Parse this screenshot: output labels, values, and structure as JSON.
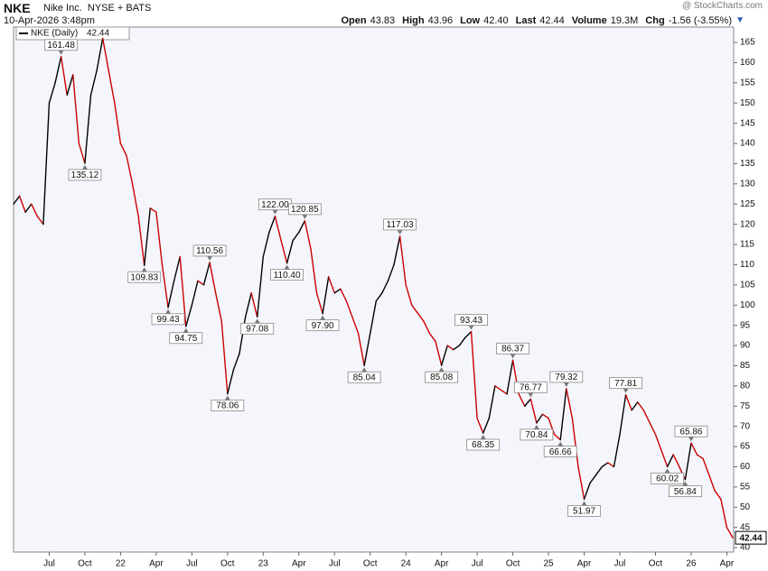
{
  "header": {
    "symbol": "NKE",
    "name": "Nike Inc.  NYSE + BATS",
    "timestamp": "10-Apr-2026 3:48pm",
    "credit": "@ StockCharts.com",
    "quote": [
      {
        "label": "Open",
        "value": "43.83"
      },
      {
        "label": "High",
        "value": "43.96"
      },
      {
        "label": "Low",
        "value": "42.40"
      },
      {
        "label": "Last",
        "value": "42.44"
      },
      {
        "label": "Volume",
        "value": "19.3M"
      },
      {
        "label": "Chg",
        "value": "-1.56 (-3.55%)"
      }
    ]
  },
  "chart_data": {
    "type": "line",
    "categories": [
      null,
      null,
      null,
      null,
      null,
      null,
      "Jul",
      null,
      null,
      null,
      null,
      null,
      "Oct",
      null,
      null,
      null,
      null,
      null,
      "22",
      null,
      null,
      null,
      null,
      null,
      "Apr",
      null,
      null,
      null,
      null,
      null,
      "Jul",
      null,
      null,
      null,
      null,
      null,
      "Oct",
      null,
      null,
      null,
      null,
      null,
      "23",
      null,
      null,
      null,
      null,
      null,
      "Apr",
      null,
      null,
      null,
      null,
      null,
      "Jul",
      null,
      null,
      null,
      null,
      null,
      "Oct",
      null,
      null,
      null,
      null,
      null,
      "24",
      null,
      null,
      null,
      null,
      null,
      "Apr",
      null,
      null,
      null,
      null,
      null,
      "Jul",
      null,
      null,
      null,
      null,
      null,
      "Oct",
      null,
      null,
      null,
      null,
      null,
      "25",
      null,
      null,
      null,
      null,
      null,
      "Apr",
      null,
      null,
      null,
      null,
      null,
      "Jul",
      null,
      null,
      null,
      null,
      null,
      "Oct",
      null,
      null,
      null,
      null,
      null,
      "26",
      null,
      null,
      null,
      null,
      null,
      "Apr",
      null
    ],
    "series": [
      {
        "name": "NKE (Daily)",
        "up_color": "#000000",
        "down_color": "#cc0000",
        "values": [
          125,
          127,
          123,
          125,
          122,
          120,
          150,
          155,
          161.48,
          152,
          157,
          140,
          135.12,
          152,
          158,
          166,
          158,
          150,
          140,
          137,
          130,
          122,
          109.83,
          124,
          123,
          110,
          99.43,
          106,
          112,
          94.75,
          100,
          106,
          105,
          110.56,
          103,
          96,
          78.06,
          84,
          88,
          97,
          103,
          97.08,
          112,
          118,
          122,
          116,
          110.4,
          116,
          118,
          120.85,
          114,
          103,
          97.9,
          107,
          103,
          104,
          101,
          97,
          93,
          85.04,
          93,
          101,
          103,
          106,
          110,
          117.03,
          105,
          100,
          98,
          96,
          93,
          91,
          85.08,
          90,
          89,
          90,
          92,
          93.43,
          72,
          68.35,
          72,
          80,
          79,
          78,
          86.37,
          78,
          75,
          76.77,
          70.84,
          73,
          72,
          68,
          66.66,
          79.32,
          72,
          60,
          51.97,
          56,
          58,
          60,
          61,
          60,
          68,
          77.81,
          74,
          76,
          74,
          71,
          68,
          64,
          60.02,
          63,
          60,
          56.84,
          65.86,
          63,
          62,
          58,
          54,
          52,
          45,
          42.44
        ],
        "value_labels": [
          null,
          null,
          null,
          null,
          null,
          null,
          null,
          null,
          "161.48",
          null,
          null,
          null,
          "135.12",
          null,
          null,
          null,
          null,
          null,
          null,
          null,
          null,
          null,
          "109.83",
          null,
          null,
          null,
          "99.43",
          null,
          null,
          "94.75",
          null,
          null,
          null,
          "110.56",
          null,
          null,
          "78.06",
          null,
          null,
          null,
          null,
          "97.08",
          null,
          null,
          "122.00",
          null,
          "110.40",
          null,
          null,
          "120.85",
          null,
          null,
          "97.90",
          null,
          null,
          null,
          null,
          null,
          null,
          "85.04",
          null,
          null,
          null,
          null,
          null,
          "117.03",
          null,
          null,
          null,
          null,
          null,
          null,
          "85.08",
          null,
          null,
          null,
          null,
          "93.43",
          null,
          "68.35",
          null,
          null,
          null,
          null,
          "86.37",
          null,
          null,
          "76.77",
          "70.84",
          null,
          null,
          null,
          "66.66",
          "79.32",
          null,
          null,
          "51.97",
          null,
          null,
          null,
          null,
          null,
          null,
          "77.81",
          null,
          null,
          null,
          null,
          null,
          null,
          "60.02",
          null,
          null,
          "56.84",
          "65.86",
          null,
          null,
          null,
          null,
          null,
          null,
          null
        ]
      }
    ],
    "ylim": [
      38.9,
      168.8
    ],
    "yticks": [
      40,
      45,
      50,
      55,
      60,
      65,
      70,
      75,
      80,
      85,
      90,
      95,
      100,
      105,
      110,
      115,
      120,
      125,
      130,
      135,
      140,
      145,
      150,
      155,
      160,
      165
    ],
    "grid": false
  }
}
